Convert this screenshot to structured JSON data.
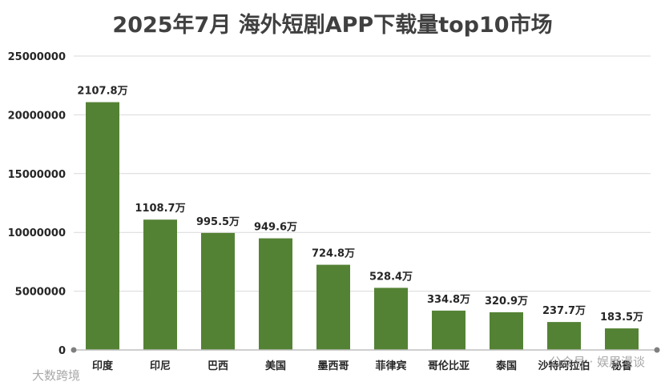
{
  "chart_data": {
    "type": "bar",
    "title": "2025年7月 海外短剧APP下载量top10市场",
    "categories": [
      "印度",
      "印尼",
      "巴西",
      "美国",
      "墨西哥",
      "菲律宾",
      "哥伦比亚",
      "泰国",
      "沙特阿拉伯",
      "秘鲁"
    ],
    "values": [
      21078000,
      11087000,
      9955000,
      9496000,
      7248000,
      5284000,
      3348000,
      3209000,
      2377000,
      1835000
    ],
    "data_labels": [
      "2107.8万",
      "1108.7万",
      "995.5万",
      "949.6万",
      "724.8万",
      "528.4万",
      "334.8万",
      "320.9万",
      "237.7万",
      "183.5万"
    ],
    "ylim": [
      0,
      25000000
    ],
    "yticks": [
      "0",
      "5000000",
      "10000000",
      "15000000",
      "20000000",
      "25000000"
    ],
    "xlabel": "",
    "ylabel": "",
    "grid": true,
    "bar_color": "#548235"
  },
  "watermarks": {
    "left": "大数跨境",
    "right": "公众号 · 娱眉漫谈"
  }
}
